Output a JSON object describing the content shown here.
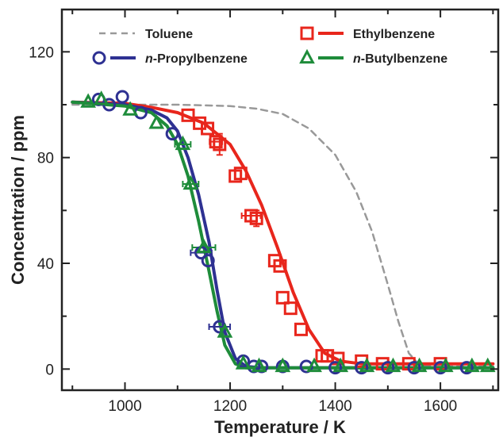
{
  "chart_data": {
    "type": "scatter",
    "xlabel": "Temperature / K",
    "ylabel": "Concentration / ppm",
    "xlim": [
      880,
      1710
    ],
    "ylim": [
      -8,
      136
    ],
    "x_ticks": [
      1000,
      1200,
      1400,
      1600
    ],
    "y_ticks": [
      0,
      40,
      80,
      120
    ],
    "grid": false,
    "legend_position": "top",
    "series": [
      {
        "name": "Toluene",
        "color": "#999999",
        "line_style": "dashed",
        "marker": "none",
        "curve": [
          [
            900,
            100
          ],
          [
            1000,
            100
          ],
          [
            1100,
            100
          ],
          [
            1200,
            99.5
          ],
          [
            1250,
            98.5
          ],
          [
            1300,
            96.5
          ],
          [
            1350,
            91
          ],
          [
            1400,
            81
          ],
          [
            1440,
            67
          ],
          [
            1470,
            52
          ],
          [
            1500,
            32
          ],
          [
            1520,
            18
          ],
          [
            1540,
            6
          ],
          [
            1560,
            1.5
          ],
          [
            1600,
            1
          ],
          [
            1700,
            1
          ]
        ],
        "points": []
      },
      {
        "name": "Ethylbenzene",
        "color": "#e8261c",
        "line_style": "solid",
        "marker": "square",
        "curve": [
          [
            900,
            101
          ],
          [
            1000,
            100.5
          ],
          [
            1050,
            99
          ],
          [
            1100,
            97
          ],
          [
            1150,
            93
          ],
          [
            1200,
            85
          ],
          [
            1230,
            75
          ],
          [
            1260,
            62
          ],
          [
            1290,
            46
          ],
          [
            1320,
            29
          ],
          [
            1350,
            15
          ],
          [
            1380,
            6
          ],
          [
            1410,
            3
          ],
          [
            1450,
            2
          ],
          [
            1700,
            2
          ]
        ],
        "points": [
          [
            1120,
            96
          ],
          [
            1142,
            93
          ],
          [
            1157,
            91
          ],
          [
            1173,
            86
          ],
          [
            1180,
            85
          ],
          [
            1210,
            73
          ],
          [
            1220,
            74
          ],
          [
            1240,
            58
          ],
          [
            1250,
            57
          ],
          [
            1285,
            41
          ],
          [
            1295,
            39
          ],
          [
            1300,
            27
          ],
          [
            1315,
            23
          ],
          [
            1335,
            15
          ],
          [
            1375,
            5
          ],
          [
            1385,
            5
          ],
          [
            1405,
            4
          ],
          [
            1450,
            3
          ],
          [
            1490,
            2
          ],
          [
            1540,
            2
          ],
          [
            1600,
            2
          ]
        ],
        "x_error_points": [
          [
            1173,
            86,
            12
          ],
          [
            1240,
            58,
            18
          ]
        ],
        "y_error_points": [
          [
            1180,
            85,
            4
          ],
          [
            1250,
            57,
            3
          ]
        ]
      },
      {
        "name": "n-Propylbenzene",
        "color": "#2e3192",
        "line_style": "solid",
        "marker": "circle",
        "curve": [
          [
            900,
            101
          ],
          [
            1000,
            100
          ],
          [
            1050,
            98
          ],
          [
            1080,
            95
          ],
          [
            1100,
            90
          ],
          [
            1120,
            80
          ],
          [
            1140,
            66
          ],
          [
            1160,
            48
          ],
          [
            1175,
            30
          ],
          [
            1190,
            14
          ],
          [
            1210,
            4
          ],
          [
            1230,
            1
          ],
          [
            1260,
            0.5
          ],
          [
            1700,
            0.5
          ]
        ],
        "points": [
          [
            950,
            102
          ],
          [
            970,
            100
          ],
          [
            995,
            103
          ],
          [
            1030,
            97
          ],
          [
            1090,
            89
          ],
          [
            1145,
            44
          ],
          [
            1158,
            41
          ],
          [
            1180,
            16
          ],
          [
            1225,
            3
          ],
          [
            1245,
            1
          ],
          [
            1260,
            1
          ],
          [
            1300,
            1
          ],
          [
            1345,
            1
          ],
          [
            1400,
            0.5
          ],
          [
            1450,
            0.5
          ],
          [
            1500,
            0.5
          ],
          [
            1550,
            0.5
          ],
          [
            1600,
            0.5
          ],
          [
            1650,
            0.5
          ]
        ],
        "x_error_points": [
          [
            1145,
            44,
            20
          ],
          [
            1180,
            16,
            20
          ]
        ]
      },
      {
        "name": "n-Butylbenzene",
        "color": "#1e8c3a",
        "line_style": "solid",
        "marker": "triangle",
        "curve": [
          [
            900,
            101
          ],
          [
            1000,
            99.5
          ],
          [
            1050,
            97
          ],
          [
            1080,
            92
          ],
          [
            1100,
            85
          ],
          [
            1120,
            73
          ],
          [
            1140,
            56
          ],
          [
            1160,
            37
          ],
          [
            1175,
            22
          ],
          [
            1190,
            9
          ],
          [
            1210,
            2
          ],
          [
            1230,
            0.5
          ],
          [
            1700,
            0.5
          ]
        ],
        "points": [
          [
            930,
            101
          ],
          [
            955,
            102
          ],
          [
            1010,
            98
          ],
          [
            1060,
            93
          ],
          [
            1110,
            85
          ],
          [
            1125,
            70
          ],
          [
            1150,
            46
          ],
          [
            1190,
            14
          ],
          [
            1225,
            2
          ],
          [
            1255,
            1
          ],
          [
            1300,
            1
          ],
          [
            1360,
            1
          ],
          [
            1410,
            1
          ],
          [
            1460,
            1
          ],
          [
            1510,
            1
          ],
          [
            1560,
            1
          ],
          [
            1610,
            1
          ],
          [
            1660,
            1
          ],
          [
            1690,
            1
          ]
        ],
        "x_error_points": [
          [
            1110,
            85,
            15
          ],
          [
            1150,
            46,
            22
          ],
          [
            1125,
            70,
            15
          ]
        ]
      }
    ]
  }
}
